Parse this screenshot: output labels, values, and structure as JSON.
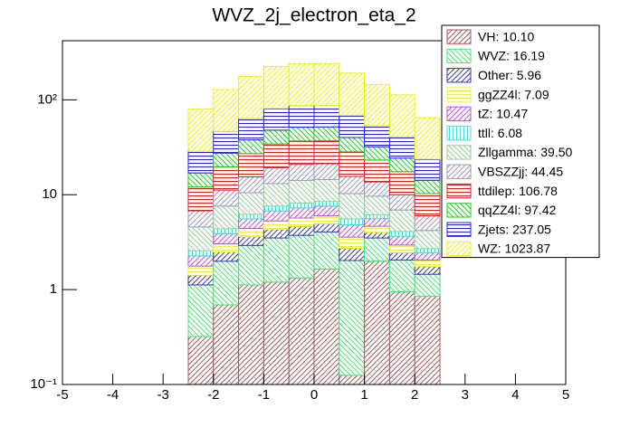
{
  "chart_data": {
    "type": "stacked_histogram",
    "title": "WVZ_2j_electron_eta_2",
    "bins": [
      -2.5,
      -2,
      -1.5,
      -1,
      -0.5,
      0,
      0.5,
      1,
      1.5,
      2,
      2.5
    ],
    "series": [
      {
        "name": "VH: 10.10",
        "color": "#a05a5a",
        "values": [
          0.32,
          0.69,
          1.12,
          1.2,
          1.33,
          1.65,
          0.125,
          2.0,
          0.95,
          0.85
        ]
      },
      {
        "name": "WVZ: 16.19",
        "color": "#55dd77",
        "values": [
          0.8,
          1.3,
          1.8,
          2.3,
          2.4,
          2.4,
          1.9,
          1.5,
          1.1,
          0.6
        ]
      },
      {
        "name": "Other: 5.96",
        "color": "#3a3a9a",
        "values": [
          0.3,
          0.5,
          0.7,
          0.8,
          0.9,
          0.9,
          0.7,
          0.5,
          0.4,
          0.3
        ]
      },
      {
        "name": "ggZZ4l: 7.09",
        "color": "#eeee44",
        "values": [
          0.35,
          0.55,
          0.8,
          1.0,
          1.05,
          1.05,
          0.85,
          0.65,
          0.5,
          0.3
        ]
      },
      {
        "name": "tZ: 10.47",
        "color": "#bb55cc",
        "values": [
          0.5,
          0.85,
          1.15,
          1.45,
          1.6,
          1.6,
          1.25,
          0.95,
          0.7,
          0.4
        ]
      },
      {
        "name": "ttll: 6.08",
        "color": "#44dddd",
        "values": [
          0.3,
          0.5,
          0.65,
          0.85,
          0.9,
          0.9,
          0.75,
          0.55,
          0.45,
          0.25
        ]
      },
      {
        "name": "Zllgamma: 39.50",
        "color": "#99cc99",
        "values": [
          2,
          3.2,
          4.3,
          5.5,
          6,
          6,
          4.7,
          3.5,
          2.8,
          1.5
        ]
      },
      {
        "name": "VBSZZjj: 44.45",
        "color": "#9999bb",
        "values": [
          2.2,
          3.6,
          4.9,
          6.2,
          6.7,
          6.7,
          5.3,
          4,
          3.1,
          1.8
        ]
      },
      {
        "name": "ttdilep: 106.78",
        "color": "#cc2222",
        "values": [
          5.3,
          8.5,
          11.7,
          15,
          16,
          16,
          12.8,
          9.6,
          7.5,
          4.3
        ]
      },
      {
        "name": "qqZZ4l: 97.42",
        "color": "#22cc22",
        "values": [
          4.9,
          7.8,
          10.7,
          13.6,
          14.6,
          14.6,
          11.7,
          8.8,
          6.8,
          3.9
        ]
      },
      {
        "name": "Zjets: 237.05",
        "color": "#2222cc",
        "values": [
          11.9,
          19,
          26,
          33.2,
          35.6,
          35.6,
          28.4,
          21.3,
          16.6,
          9.5
        ]
      },
      {
        "name": "WZ: 1023.87",
        "color": "#eeee22",
        "values": [
          51,
          82,
          113,
          143,
          154,
          154,
          123,
          92,
          72,
          41
        ]
      }
    ],
    "xlim": [
      -5,
      5
    ],
    "xticks": [
      -5,
      -4,
      -3,
      -2,
      -1,
      0,
      1,
      2,
      3,
      4,
      5
    ],
    "ylim": [
      0.1,
      420
    ],
    "log_y": true,
    "yticks": [
      {
        "value": 0.1,
        "label": "10⁻¹"
      },
      1,
      10,
      {
        "value": 100,
        "label": "10²"
      }
    ]
  }
}
